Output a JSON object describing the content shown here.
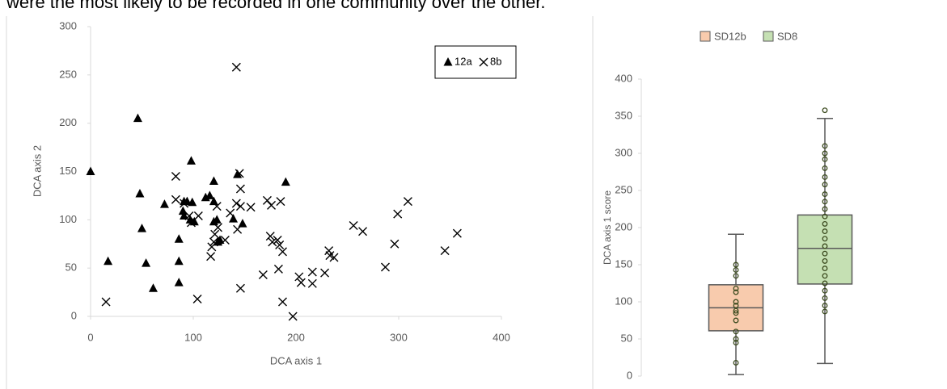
{
  "caption": "were the most likely to be recorded in one community over the other.",
  "chart_data": [
    {
      "type": "scatter",
      "xlabel": "DCA axis 1",
      "ylabel": "DCA axis 2",
      "xlim": [
        0,
        400
      ],
      "xticks": [
        0,
        100,
        200,
        300,
        400
      ],
      "ylim": [
        0,
        300
      ],
      "yticks": [
        0,
        50,
        100,
        150,
        200,
        250,
        300
      ],
      "legend": "top-right",
      "series": [
        {
          "name": "12a",
          "marker": "triangle",
          "color": "#000000",
          "x": [
            0,
            17,
            46,
            48,
            50,
            54,
            61,
            72,
            86,
            86,
            86,
            90,
            91,
            91,
            94,
            97,
            98,
            99,
            101,
            112,
            116,
            120,
            120,
            120,
            123,
            124,
            126,
            139,
            143,
            148,
            190
          ],
          "values": [
            150,
            57,
            205,
            127,
            91,
            55,
            29,
            116,
            80,
            57,
            35,
            109,
            119,
            104,
            119,
            100,
            161,
            118,
            98,
            123,
            125,
            140,
            119,
            98,
            100,
            77,
            79,
            101,
            147,
            96,
            139
          ]
        },
        {
          "name": "8b",
          "marker": "cross",
          "color": "#000000",
          "x": [
            15,
            83,
            83,
            91,
            96,
            98,
            105,
            104,
            117,
            118,
            120,
            121,
            123,
            124,
            131,
            136,
            142,
            142,
            145,
            146,
            146,
            143,
            146,
            156,
            168,
            172,
            176,
            175,
            177,
            182,
            184,
            183,
            185,
            187,
            187,
            197,
            203,
            205,
            216,
            216,
            228,
            232,
            233,
            237,
            256,
            265,
            287,
            296,
            299,
            309,
            345,
            357
          ],
          "values": [
            15,
            145,
            121,
            117,
            104,
            97,
            104,
            18,
            62,
            72,
            77,
            85,
            114,
            92,
            79,
            107,
            258,
            117,
            148,
            132,
            114,
            90,
            29,
            113,
            43,
            120,
            115,
            83,
            77,
            79,
            74,
            49,
            119,
            67,
            15,
            0,
            41,
            35,
            46,
            34,
            45,
            68,
            63,
            61,
            94,
            88,
            51,
            75,
            106,
            119,
            68,
            86
          ]
        }
      ]
    },
    {
      "type": "box",
      "ylabel": "DCA axis 1 score",
      "ylim": [
        0,
        400
      ],
      "yticks": [
        0,
        50,
        100,
        150,
        200,
        250,
        300,
        350,
        400
      ],
      "legend": "top",
      "series": [
        {
          "name": "SD12b",
          "color": "#f8cbad",
          "min": 2,
          "q1": 61,
          "median": 92,
          "q3": 123,
          "max": 191,
          "points": [
            150,
            143,
            135,
            118,
            113,
            100,
            95,
            88,
            85,
            75,
            60,
            50,
            45,
            18
          ]
        },
        {
          "name": "SD8",
          "color": "#c5e0b3",
          "min": 17,
          "q1": 124,
          "median": 172,
          "q3": 217,
          "max": 347,
          "points": [
            358,
            310,
            300,
            292,
            280,
            268,
            258,
            245,
            235,
            225,
            215,
            205,
            195,
            185,
            175,
            165,
            155,
            145,
            135,
            125,
            115,
            105,
            95,
            87
          ]
        }
      ]
    }
  ]
}
